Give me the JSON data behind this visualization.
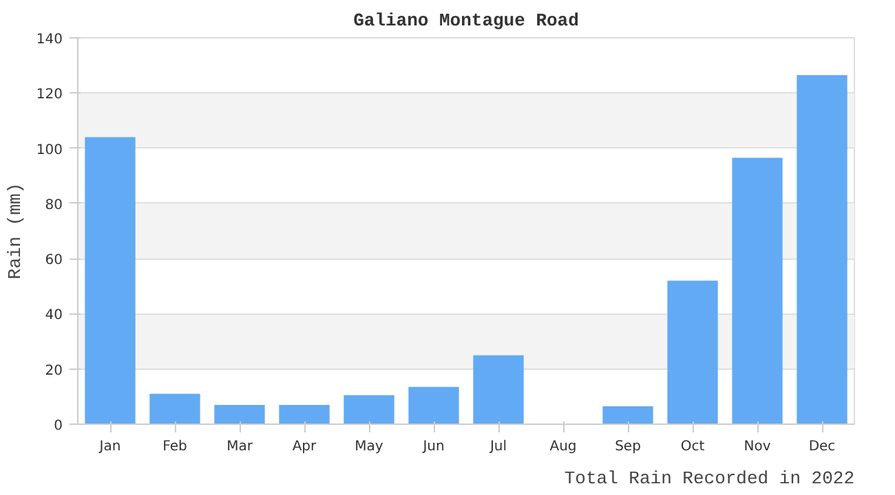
{
  "chart_data": {
    "type": "bar",
    "title": "Galiano Montague Road",
    "ylabel": "Rain (mm)",
    "categories": [
      "Jan",
      "Feb",
      "Mar",
      "Apr",
      "May",
      "Jun",
      "Jul",
      "Aug",
      "Sep",
      "Oct",
      "Nov",
      "Dec"
    ],
    "values": [
      104,
      11,
      7,
      7,
      10.5,
      13.5,
      25,
      0,
      6.5,
      52,
      96.5,
      126.5
    ],
    "color": "#62aaf4",
    "ylim": [
      0,
      140
    ],
    "yticks": [
      0,
      20,
      40,
      60,
      80,
      100,
      120,
      140
    ],
    "grid": "y",
    "annotations": [
      "Total Rain Recorded in 2022"
    ]
  }
}
